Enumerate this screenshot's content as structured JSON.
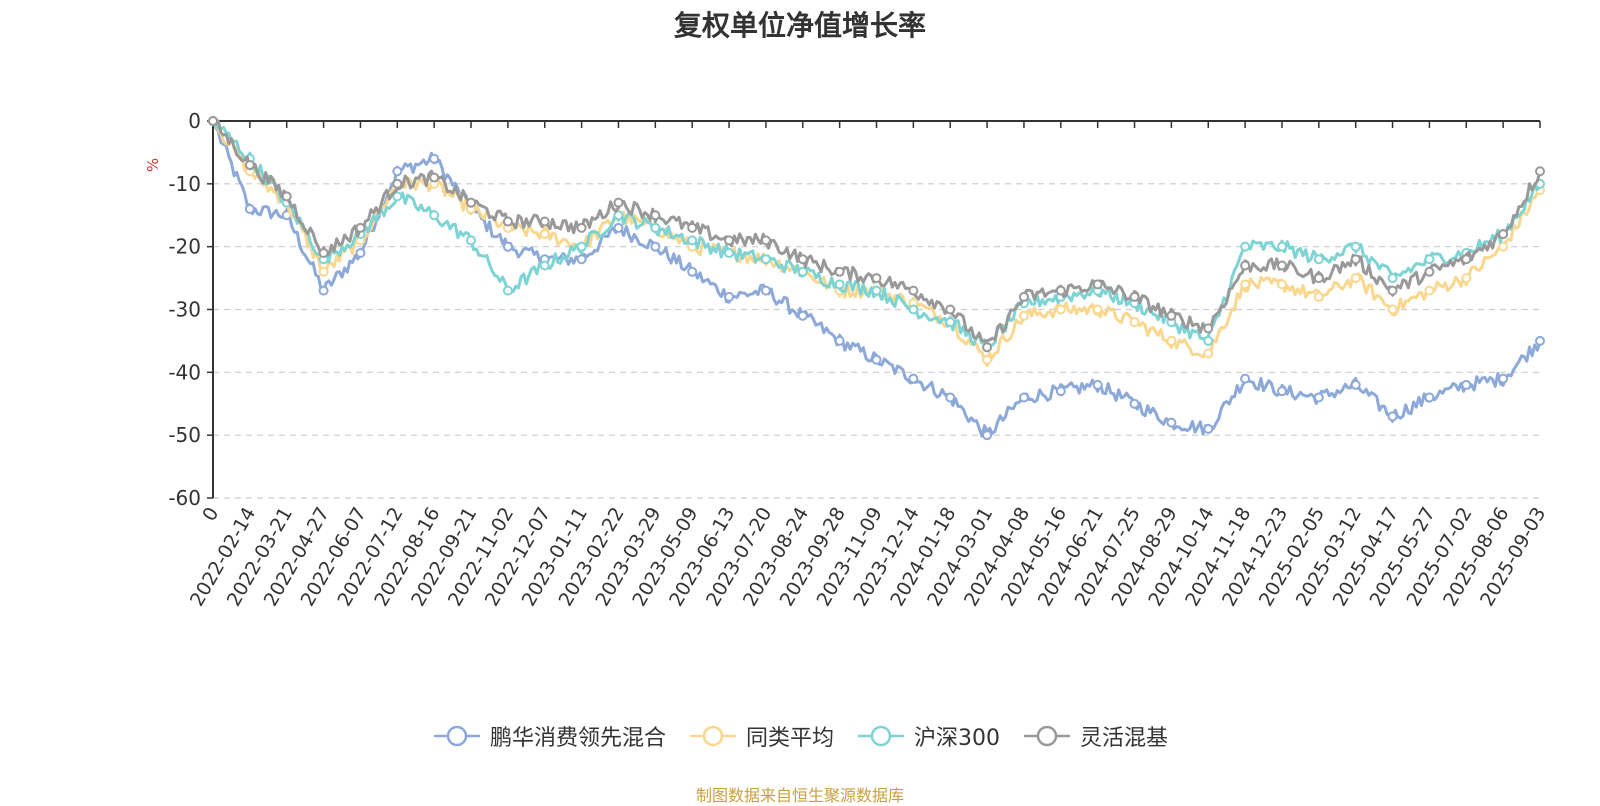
{
  "chart_data": {
    "type": "line",
    "title": "复权单位净值增长率",
    "ylabel": "%",
    "ylim": [
      -60,
      0
    ],
    "yticks": [
      0,
      -10,
      -20,
      -30,
      -40,
      -50,
      -60
    ],
    "x_tick_labels": [
      "0",
      "2022-02-14",
      "2022-03-21",
      "2022-04-27",
      "2022-06-07",
      "2022-07-12",
      "2022-08-16",
      "2022-09-21",
      "2022-11-02",
      "2022-12-07",
      "2023-01-11",
      "2023-02-22",
      "2023-03-29",
      "2023-05-09",
      "2023-06-13",
      "2023-07-20",
      "2023-08-24",
      "2023-09-28",
      "2023-11-09",
      "2023-12-14",
      "2024-01-18",
      "2024-03-01",
      "2024-04-08",
      "2024-05-16",
      "2024-06-21",
      "2024-07-25",
      "2024-08-29",
      "2024-10-14",
      "2024-11-18",
      "2024-12-23",
      "2025-02-05",
      "2025-03-12",
      "2025-04-17",
      "2025-05-27",
      "2025-07-02",
      "2025-08-06",
      "2025-09-03"
    ],
    "grid": true,
    "legend_position": "bottom-center",
    "series": [
      {
        "name": "鹏华消费领先混合",
        "color": "#8da9d8",
        "values": [
          0,
          -14,
          -15,
          -27,
          -21,
          -8,
          -6,
          -14,
          -20,
          -22,
          -22,
          -17,
          -20,
          -24,
          -28,
          -27,
          -31,
          -35,
          -38,
          -41,
          -44,
          -50,
          -44,
          -43,
          -42,
          -45,
          -48,
          -49,
          -41,
          -43,
          -44,
          -42,
          -47,
          -44,
          -42,
          -41,
          -35
        ]
      },
      {
        "name": "同类平均",
        "color": "#fad78e",
        "values": [
          0,
          -8,
          -13,
          -24,
          -19,
          -10,
          -10,
          -14,
          -17,
          -18,
          -20,
          -15,
          -17,
          -20,
          -21,
          -22,
          -24,
          -27,
          -27,
          -29,
          -32,
          -38,
          -31,
          -30,
          -30,
          -32,
          -35,
          -37,
          -26,
          -26,
          -28,
          -25,
          -30,
          -27,
          -25,
          -20,
          -11
        ]
      },
      {
        "name": "沪深300",
        "color": "#7ed3d4",
        "values": [
          0,
          -6,
          -13,
          -22,
          -18,
          -12,
          -15,
          -19,
          -27,
          -23,
          -20,
          -15,
          -17,
          -19,
          -21,
          -22,
          -24,
          -26,
          -27,
          -30,
          -32,
          -36,
          -29,
          -28,
          -27,
          -29,
          -32,
          -35,
          -20,
          -20,
          -22,
          -20,
          -25,
          -22,
          -21,
          -18,
          -10
        ]
      },
      {
        "name": "灵活混基",
        "color": "#999999",
        "values": [
          0,
          -7,
          -12,
          -21,
          -17,
          -10,
          -9,
          -13,
          -16,
          -16,
          -17,
          -13,
          -15,
          -17,
          -19,
          -19,
          -22,
          -24,
          -25,
          -27,
          -30,
          -36,
          -28,
          -27,
          -26,
          -28,
          -31,
          -33,
          -23,
          -23,
          -25,
          -22,
          -27,
          -24,
          -22,
          -18,
          -8
        ]
      }
    ]
  },
  "source_text": "制图数据来自恒生聚源数据库"
}
